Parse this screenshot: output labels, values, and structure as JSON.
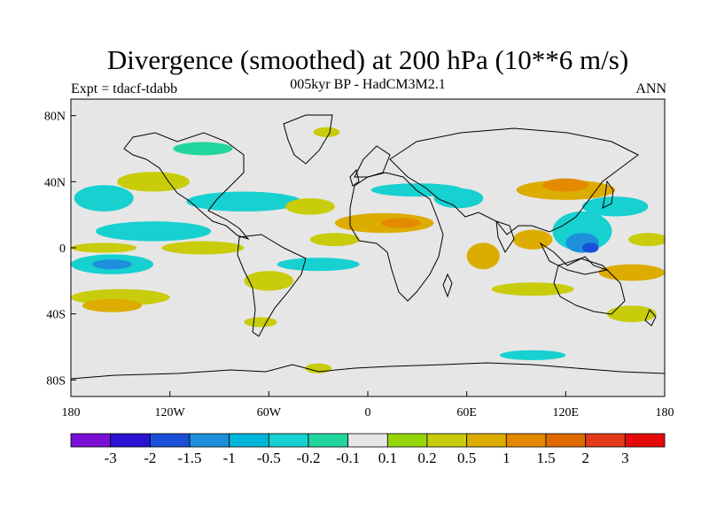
{
  "header": {
    "title": "Divergence (smoothed) at 200 hPa (10**6 m/s)",
    "subtitle": "005kyr BP - HadCM3M2.1",
    "left_label": "Expt = tdacf-tdabb",
    "right_label": "ANN"
  },
  "chart_data": {
    "type": "heatmap",
    "title": "Divergence (smoothed) at 200 hPa (10**6 m/s)",
    "subtitle": "005kyr BP - HadCM3M2.1",
    "experiment": "Expt = tdacf-tdabb",
    "season": "ANN",
    "x_axis": {
      "range": [
        -180,
        180
      ],
      "ticks": [
        {
          "value": -180,
          "label": "180"
        },
        {
          "value": -120,
          "label": "120W"
        },
        {
          "value": -60,
          "label": "60W"
        },
        {
          "value": 0,
          "label": "0"
        },
        {
          "value": 60,
          "label": "60E"
        },
        {
          "value": 120,
          "label": "120E"
        },
        {
          "value": 180,
          "label": "180"
        }
      ]
    },
    "y_axis": {
      "range": [
        -90,
        90
      ],
      "ticks": [
        {
          "value": 80,
          "label": "80N"
        },
        {
          "value": 40,
          "label": "40N"
        },
        {
          "value": 0,
          "label": "0"
        },
        {
          "value": -40,
          "label": "40S"
        },
        {
          "value": -80,
          "label": "80S"
        }
      ]
    },
    "colorbar": {
      "colors": [
        "#7a10d6",
        "#2a12d2",
        "#1a50d8",
        "#1d8fdb",
        "#00b6d8",
        "#17d0d0",
        "#20d69c",
        "#e6e6e6",
        "#94d60a",
        "#c8cc0a",
        "#dcac00",
        "#e48a00",
        "#e06a00",
        "#e23a1a",
        "#e40a0a"
      ],
      "labels": [
        "-3",
        "-2",
        "-1.5",
        "-1",
        "-0.5",
        "-0.2",
        "-0.1",
        "0.1",
        "0.2",
        "0.5",
        "1",
        "1.5",
        "2",
        "3"
      ]
    },
    "features": [
      {
        "lon": -155,
        "lat": -10,
        "rx": 25,
        "ry": 6,
        "level": 5
      },
      {
        "lon": -155,
        "lat": -10,
        "rx": 12,
        "ry": 3,
        "level": 3
      },
      {
        "lon": -130,
        "lat": 10,
        "rx": 35,
        "ry": 6,
        "level": 5
      },
      {
        "lon": -160,
        "lat": 30,
        "rx": 18,
        "ry": 8,
        "level": 5
      },
      {
        "lon": -75,
        "lat": 28,
        "rx": 35,
        "ry": 6,
        "level": 5
      },
      {
        "lon": -100,
        "lat": 60,
        "rx": 18,
        "ry": 4,
        "level": 6
      },
      {
        "lon": -160,
        "lat": 0,
        "rx": 20,
        "ry": 3,
        "level": 9
      },
      {
        "lon": -100,
        "lat": 0,
        "rx": 25,
        "ry": 4,
        "level": 9
      },
      {
        "lon": -150,
        "lat": -30,
        "rx": 30,
        "ry": 5,
        "level": 9
      },
      {
        "lon": -155,
        "lat": -35,
        "rx": 18,
        "ry": 4,
        "level": 10
      },
      {
        "lon": -130,
        "lat": 40,
        "rx": 22,
        "ry": 6,
        "level": 9
      },
      {
        "lon": -35,
        "lat": 25,
        "rx": 15,
        "ry": 5,
        "level": 9
      },
      {
        "lon": -30,
        "lat": -10,
        "rx": 25,
        "ry": 4,
        "level": 5
      },
      {
        "lon": -20,
        "lat": 5,
        "rx": 15,
        "ry": 4,
        "level": 9
      },
      {
        "lon": -60,
        "lat": -20,
        "rx": 15,
        "ry": 6,
        "level": 9
      },
      {
        "lon": 10,
        "lat": 15,
        "rx": 30,
        "ry": 6,
        "level": 10
      },
      {
        "lon": 20,
        "lat": 15,
        "rx": 12,
        "ry": 3,
        "level": 11
      },
      {
        "lon": 30,
        "lat": 35,
        "rx": 28,
        "ry": 4,
        "level": 5
      },
      {
        "lon": 55,
        "lat": 30,
        "rx": 15,
        "ry": 6,
        "level": 5
      },
      {
        "lon": 70,
        "lat": -5,
        "rx": 10,
        "ry": 8,
        "level": 10
      },
      {
        "lon": 100,
        "lat": -25,
        "rx": 25,
        "ry": 4,
        "level": 9
      },
      {
        "lon": 120,
        "lat": 35,
        "rx": 30,
        "ry": 6,
        "level": 10
      },
      {
        "lon": 120,
        "lat": 38,
        "rx": 14,
        "ry": 4,
        "level": 11
      },
      {
        "lon": 100,
        "lat": 5,
        "rx": 12,
        "ry": 6,
        "level": 10
      },
      {
        "lon": 130,
        "lat": 10,
        "rx": 18,
        "ry": 12,
        "level": 5
      },
      {
        "lon": 130,
        "lat": 3,
        "rx": 10,
        "ry": 6,
        "level": 3
      },
      {
        "lon": 135,
        "lat": 0,
        "rx": 5,
        "ry": 3,
        "level": 2
      },
      {
        "lon": 150,
        "lat": 25,
        "rx": 20,
        "ry": 6,
        "level": 5
      },
      {
        "lon": 160,
        "lat": -15,
        "rx": 20,
        "ry": 5,
        "level": 10
      },
      {
        "lon": 170,
        "lat": 5,
        "rx": 12,
        "ry": 4,
        "level": 9
      },
      {
        "lon": 160,
        "lat": -40,
        "rx": 15,
        "ry": 5,
        "level": 9
      },
      {
        "lon": 100,
        "lat": -65,
        "rx": 20,
        "ry": 3,
        "level": 5
      },
      {
        "lon": -30,
        "lat": -73,
        "rx": 8,
        "ry": 3,
        "level": 9
      },
      {
        "lon": -25,
        "lat": 70,
        "rx": 8,
        "ry": 3,
        "level": 9
      },
      {
        "lon": -65,
        "lat": -45,
        "rx": 10,
        "ry": 3,
        "level": 9
      }
    ]
  }
}
